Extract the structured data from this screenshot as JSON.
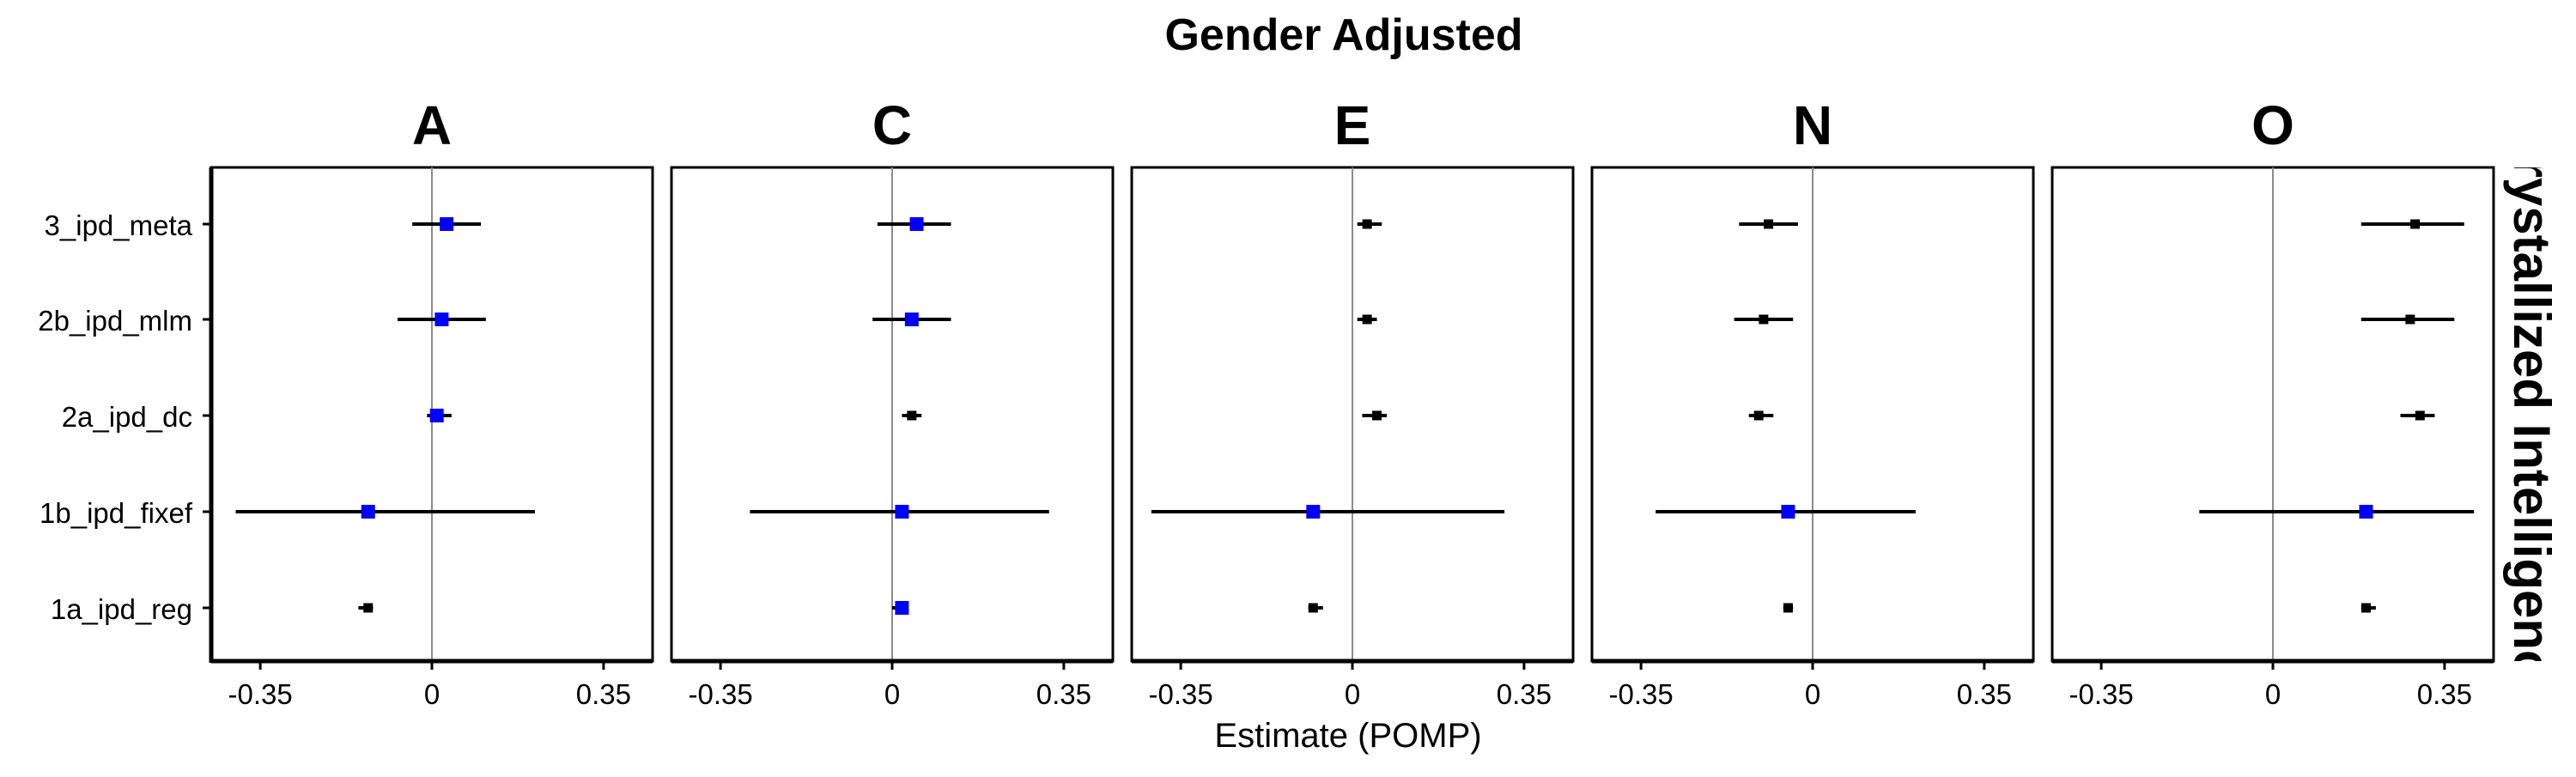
{
  "chart_data": {
    "type": "scatter",
    "title": "Gender Adjusted",
    "xlabel": "Estimate (POMP)",
    "strip_right": "Crystallized Intelligence",
    "categories": [
      "3_ipd_meta",
      "2b_ipd_mlm",
      "2a_ipd_dc",
      "1b_ipd_fixef",
      "1a_ipd_reg"
    ],
    "xlim": [
      -0.45,
      0.45
    ],
    "xticks": [
      -0.35,
      0,
      0.35
    ],
    "xtick_labels": [
      "-0.35",
      "0",
      "0.35"
    ],
    "reference_line": 0,
    "colors": {
      "highlight": "#0000ff",
      "default": "#000000",
      "refline": "#8c8c8c"
    },
    "panels": [
      {
        "label": "A",
        "points": [
          {
            "category": "3_ipd_meta",
            "estimate": 0.03,
            "lower": -0.04,
            "upper": 0.1,
            "color": "#0000ff"
          },
          {
            "category": "2b_ipd_mlm",
            "estimate": 0.02,
            "lower": -0.07,
            "upper": 0.11,
            "color": "#0000ff"
          },
          {
            "category": "2a_ipd_dc",
            "estimate": 0.01,
            "lower": -0.01,
            "upper": 0.04,
            "color": "#0000ff"
          },
          {
            "category": "1b_ipd_fixef",
            "estimate": -0.13,
            "lower": -0.4,
            "upper": 0.21,
            "color": "#0000ff"
          },
          {
            "category": "1a_ipd_reg",
            "estimate": -0.13,
            "lower": -0.15,
            "upper": -0.12,
            "color": "#000000"
          }
        ]
      },
      {
        "label": "C",
        "points": [
          {
            "category": "3_ipd_meta",
            "estimate": 0.05,
            "lower": -0.03,
            "upper": 0.12,
            "color": "#0000ff"
          },
          {
            "category": "2b_ipd_mlm",
            "estimate": 0.04,
            "lower": -0.04,
            "upper": 0.12,
            "color": "#0000ff"
          },
          {
            "category": "2a_ipd_dc",
            "estimate": 0.04,
            "lower": 0.02,
            "upper": 0.06,
            "color": "#000000"
          },
          {
            "category": "1b_ipd_fixef",
            "estimate": 0.02,
            "lower": -0.29,
            "upper": 0.32,
            "color": "#0000ff"
          },
          {
            "category": "1a_ipd_reg",
            "estimate": 0.02,
            "lower": 0.0,
            "upper": 0.03,
            "color": "#0000ff"
          }
        ]
      },
      {
        "label": "E",
        "points": [
          {
            "category": "3_ipd_meta",
            "estimate": 0.03,
            "lower": 0.01,
            "upper": 0.06,
            "color": "#000000"
          },
          {
            "category": "2b_ipd_mlm",
            "estimate": 0.03,
            "lower": 0.01,
            "upper": 0.05,
            "color": "#000000"
          },
          {
            "category": "2a_ipd_dc",
            "estimate": 0.05,
            "lower": 0.02,
            "upper": 0.07,
            "color": "#000000"
          },
          {
            "category": "1b_ipd_fixef",
            "estimate": -0.08,
            "lower": -0.41,
            "upper": 0.31,
            "color": "#0000ff"
          },
          {
            "category": "1a_ipd_reg",
            "estimate": -0.08,
            "lower": -0.09,
            "upper": -0.06,
            "color": "#000000"
          }
        ]
      },
      {
        "label": "N",
        "points": [
          {
            "category": "3_ipd_meta",
            "estimate": -0.09,
            "lower": -0.15,
            "upper": -0.03,
            "color": "#000000"
          },
          {
            "category": "2b_ipd_mlm",
            "estimate": -0.1,
            "lower": -0.16,
            "upper": -0.04,
            "color": "#000000"
          },
          {
            "category": "2a_ipd_dc",
            "estimate": -0.11,
            "lower": -0.13,
            "upper": -0.08,
            "color": "#000000"
          },
          {
            "category": "1b_ipd_fixef",
            "estimate": -0.05,
            "lower": -0.32,
            "upper": 0.21,
            "color": "#0000ff"
          },
          {
            "category": "1a_ipd_reg",
            "estimate": -0.05,
            "lower": -0.06,
            "upper": -0.04,
            "color": "#000000"
          }
        ]
      },
      {
        "label": "O",
        "points": [
          {
            "category": "3_ipd_meta",
            "estimate": 0.29,
            "lower": 0.18,
            "upper": 0.39,
            "color": "#000000"
          },
          {
            "category": "2b_ipd_mlm",
            "estimate": 0.28,
            "lower": 0.18,
            "upper": 0.37,
            "color": "#000000"
          },
          {
            "category": "2a_ipd_dc",
            "estimate": 0.3,
            "lower": 0.26,
            "upper": 0.33,
            "color": "#000000"
          },
          {
            "category": "1b_ipd_fixef",
            "estimate": 0.19,
            "lower": -0.15,
            "upper": 0.41,
            "color": "#0000ff"
          },
          {
            "category": "1a_ipd_reg",
            "estimate": 0.19,
            "lower": 0.18,
            "upper": 0.21,
            "color": "#000000"
          }
        ]
      }
    ]
  }
}
